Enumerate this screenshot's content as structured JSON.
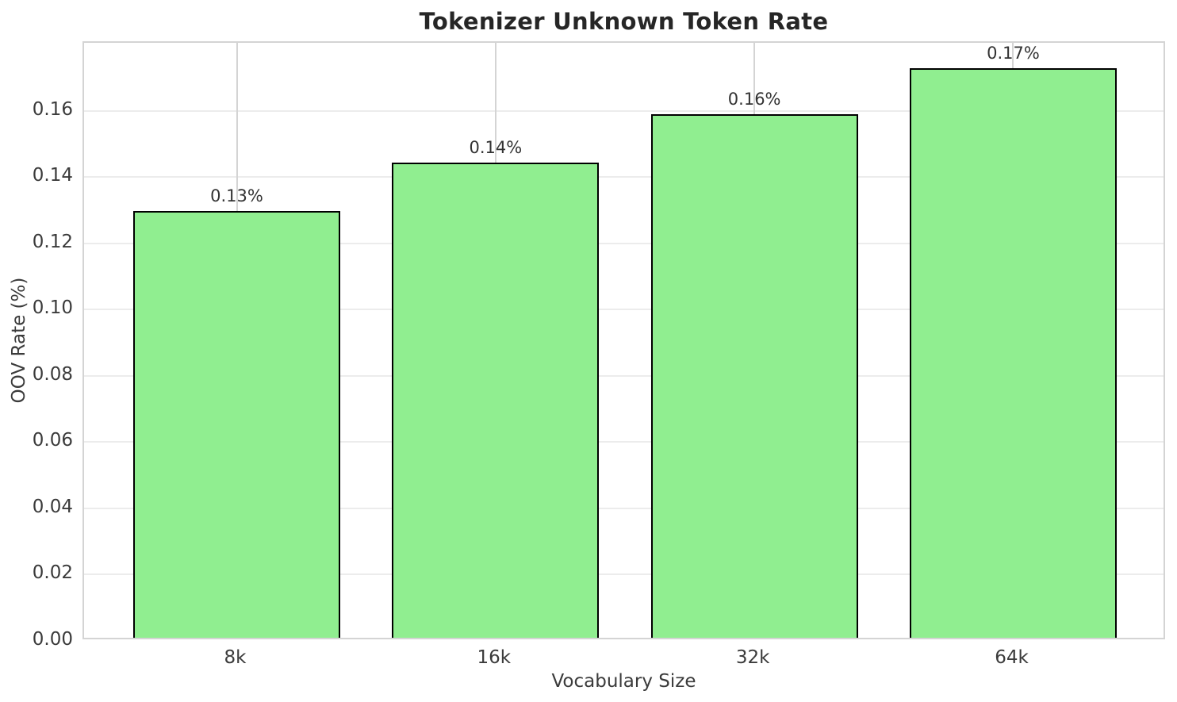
{
  "chart_data": {
    "type": "bar",
    "title": "Tokenizer Unknown Token Rate",
    "xlabel": "Vocabulary Size",
    "ylabel": "OOV Rate (%)",
    "categories": [
      "8k",
      "16k",
      "32k",
      "64k"
    ],
    "values": [
      0.1288,
      0.1435,
      0.1581,
      0.172
    ],
    "bar_labels": [
      "0.13%",
      "0.14%",
      "0.16%",
      "0.17%"
    ],
    "ylim": [
      0,
      0.1805
    ],
    "yticks": [
      0,
      0.02,
      0.04,
      0.06,
      0.08,
      0.1,
      0.12,
      0.14,
      0.16
    ],
    "ytick_labels": [
      "0.00",
      "0.02",
      "0.04",
      "0.06",
      "0.08",
      "0.10",
      "0.12",
      "0.14",
      "0.16"
    ],
    "grid": true,
    "legend": false,
    "colors": {
      "bar_fill": "#90EE90",
      "bar_edge": "#000000",
      "grid_vertical": "#d4d4d4",
      "grid_horizontal": "#ececec",
      "spine": "#d4d4d4",
      "title_text": "#262626",
      "tick_text": "#3b3b3b"
    }
  }
}
